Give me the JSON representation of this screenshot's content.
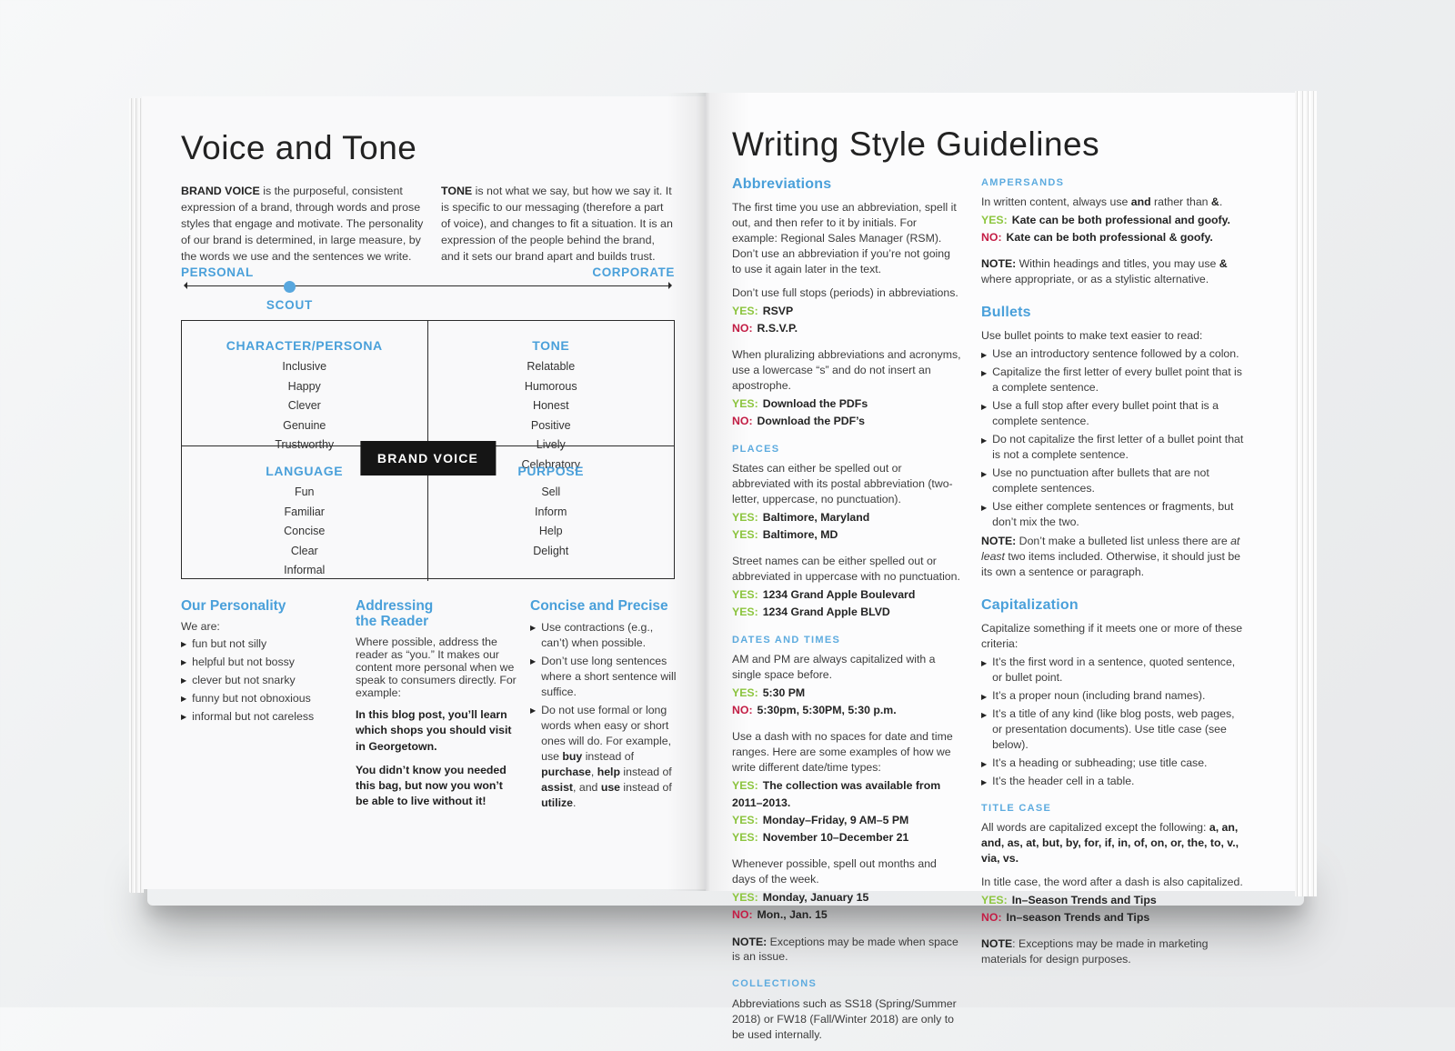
{
  "colors": {
    "accent_blue": "#4aa0da",
    "subhead_blue": "#5dabdf",
    "yes_green": "#8dc63f",
    "no_red": "#c41d45",
    "brand_box": "#151515"
  },
  "left_page": {
    "title": "Voice and Tone",
    "intro_col1": [
      {
        "t": "BRAND VOICE ",
        "b": true
      },
      {
        "t": "is the purposeful, consistent expression of a brand, through words and prose styles that engage and motivate. The personality of our brand is determined, in large measure, by the words we use and the sentences we write."
      }
    ],
    "intro_col2": [
      {
        "t": "TONE ",
        "b": true
      },
      {
        "t": "is not what we say, but how we say it. It is specific to our messaging (therefore a part of voice), and changes to fit a situation. It is an expression of the people behind the brand, and it sets our brand apart and builds trust."
      }
    ],
    "spectrum": {
      "left_label": "PERSONAL",
      "right_label": "CORPORATE",
      "marker_label": "SCOUT",
      "marker_position_pct": 22
    },
    "matrix": {
      "center_label": "BRAND VOICE",
      "quadrants": [
        {
          "title": "CHARACTER/PERSONA",
          "items": [
            "Inclusive",
            "Happy",
            "Clever",
            "Genuine",
            "Trustworthy"
          ]
        },
        {
          "title": "TONE",
          "items": [
            "Relatable",
            "Humorous",
            "Honest",
            "Positive",
            "Lively",
            "Celebratory"
          ]
        },
        {
          "title": "LANGUAGE",
          "items": [
            "Fun",
            "Familiar",
            "Concise",
            "Clear",
            "Informal"
          ]
        },
        {
          "title": "PURPOSE",
          "items": [
            "Sell",
            "Inform",
            "Help",
            "Delight"
          ]
        }
      ]
    },
    "personality": {
      "title": "Our Personality",
      "intro": "We are:",
      "bullets": [
        "fun but not silly",
        "helpful but not bossy",
        "clever but not snarky",
        "funny but not obnoxious",
        "informal but not careless"
      ]
    },
    "addressing": {
      "title": "Addressing the Reader",
      "body": "Where possible, address the reader as “you.” It makes our content more personal when we speak to consumers directly. For example:",
      "examples": [
        "In this blog post, you’ll learn which shops you should visit in Georgetown.",
        "You didn’t know you needed this bag, but now you won’t be able to live without it!"
      ]
    },
    "concise": {
      "title": "Concise and Precise",
      "bullets": [
        [
          {
            "t": "Use contractions (e.g., can’t) when possible."
          }
        ],
        [
          {
            "t": "Don’t use long sentences where a short sentence will suffice."
          }
        ],
        [
          {
            "t": "Do not use formal or long words when easy or short ones will do. For example, use "
          },
          {
            "t": "buy",
            "b": true
          },
          {
            "t": " instead of "
          },
          {
            "t": "purchase",
            "b": true
          },
          {
            "t": ", "
          },
          {
            "t": "help",
            "b": true
          },
          {
            "t": " instead of "
          },
          {
            "t": "assist",
            "b": true
          },
          {
            "t": ", and "
          },
          {
            "t": "use",
            "b": true
          },
          {
            "t": " instead of "
          },
          {
            "t": "utilize",
            "b": true
          },
          {
            "t": "."
          }
        ]
      ]
    }
  },
  "right_page": {
    "title": "Writing Style Guidelines",
    "abbreviations": {
      "title": "Abbreviations",
      "p1": "The first time you use an abbreviation, spell it out, and then refer to it by initials. For example: Regional Sales Manager (RSM). Don’t use an abbreviation if you’re not going to use it again later in the text.",
      "p2": "Don’t use full stops (periods) in abbreviations.",
      "yn1": [
        {
          "label": "YES:",
          "kind": "yes",
          "text": "RSVP"
        },
        {
          "label": "NO:",
          "kind": "no",
          "text": "R.S.V.P."
        }
      ],
      "p3": "When pluralizing abbreviations and acronyms, use a lowercase “s” and do not insert an apostrophe.",
      "yn2": [
        {
          "label": "YES:",
          "kind": "yes",
          "text": "Download the PDFs"
        },
        {
          "label": "NO:",
          "kind": "no",
          "text": "Download the PDF’s"
        }
      ]
    },
    "places": {
      "title": "PLACES",
      "p1": "States can either be spelled out or abbreviated with its postal abbreviation (two-letter, uppercase, no punctuation).",
      "yn1": [
        {
          "label": "YES:",
          "kind": "yes",
          "text": "Baltimore, Maryland"
        },
        {
          "label": "YES:",
          "kind": "yes",
          "text": "Baltimore, MD"
        }
      ],
      "p2": "Street names can be either spelled out or abbreviated in uppercase with no punctuation.",
      "yn2": [
        {
          "label": "YES:",
          "kind": "yes",
          "text": "1234 Grand Apple Boulevard"
        },
        {
          "label": "YES:",
          "kind": "yes",
          "text": "1234 Grand Apple BLVD"
        }
      ]
    },
    "dates": {
      "title": "DATES AND TIMES",
      "p1": "AM and PM are always capitalized with a single space before.",
      "yn1": [
        {
          "label": "YES:",
          "kind": "yes",
          "text": "5:30 PM"
        },
        {
          "label": "NO:",
          "kind": "no",
          "text": "5:30pm, 5:30PM, 5:30 p.m."
        }
      ],
      "p2": "Use a dash with no spaces for date and time ranges. Here are some examples of how we write different date/time types:",
      "yn2": [
        {
          "label": "YES:",
          "kind": "yes",
          "text": "The collection was available from 2011–2013."
        },
        {
          "label": "YES:",
          "kind": "yes",
          "text": "Monday–Friday, 9 AM–5 PM"
        },
        {
          "label": "YES:",
          "kind": "yes",
          "text": "November 10–December 21"
        }
      ],
      "p3": "Whenever possible, spell out months and days of the week.",
      "yn3": [
        {
          "label": "YES:",
          "kind": "yes",
          "text": "Monday, January 15"
        },
        {
          "label": "NO:",
          "kind": "no",
          "text": "Mon., Jan. 15"
        }
      ],
      "note": [
        {
          "t": "NOTE:",
          "b": true
        },
        {
          "t": " Exceptions may be made when space is an issue."
        }
      ]
    },
    "collections": {
      "title": "COLLECTIONS",
      "p1": "Abbreviations such as SS18 (Spring/Summer 2018) or FW18 (Fall/Winter 2018) are only to be used internally."
    },
    "ampersands": {
      "title": "AMPERSANDS",
      "p1": [
        {
          "t": "In written content, always use "
        },
        {
          "t": "and",
          "b": true
        },
        {
          "t": " rather than "
        },
        {
          "t": "&",
          "b": true
        },
        {
          "t": "."
        }
      ],
      "yn1": [
        {
          "label": "YES:",
          "kind": "yes",
          "text": "Kate can be both professional and goofy."
        },
        {
          "label": "NO:",
          "kind": "no",
          "text": "Kate can be both professional & goofy."
        }
      ],
      "note": [
        {
          "t": "NOTE:",
          "b": true
        },
        {
          "t": " Within headings and titles, you may use "
        },
        {
          "t": "&",
          "b": true
        },
        {
          "t": " where appropriate, or as a stylistic alternative."
        }
      ]
    },
    "bullets_sec": {
      "title": "Bullets",
      "p1": "Use bullet points to make text easier to read:",
      "bullets": [
        [
          {
            "t": "Use an introductory sentence followed by a colon."
          }
        ],
        [
          {
            "t": "Capitalize the first letter of every bullet point that is a complete sentence."
          }
        ],
        [
          {
            "t": "Use a full stop after every bullet point that is a complete sentence."
          }
        ],
        [
          {
            "t": "Do not capitalize the first letter of a bullet point that is not a complete sentence."
          }
        ],
        [
          {
            "t": "Use no punctuation after bullets that are not complete sentences."
          }
        ],
        [
          {
            "t": "Use either complete sentences or fragments, but don’t mix the two."
          }
        ]
      ],
      "note": [
        {
          "t": "NOTE:",
          "b": true
        },
        {
          "t": " Don’t make a bulleted list unless there are "
        },
        {
          "t": "at least",
          "i": true
        },
        {
          "t": " two items included. Otherwise, it should just be its own a sentence or paragraph."
        }
      ]
    },
    "capitalization": {
      "title": "Capitalization",
      "p1": "Capitalize something if it meets one or more of these criteria:",
      "bullets": [
        [
          {
            "t": "It’s the first word in a sentence, quoted sentence, or bullet point."
          }
        ],
        [
          {
            "t": "It’s a proper noun (including brand names)."
          }
        ],
        [
          {
            "t": "It’s a title of any kind (like blog posts, web pages, or presentation documents). Use title case (see below)."
          }
        ],
        [
          {
            "t": "It’s a heading or subheading; use title case."
          }
        ],
        [
          {
            "t": "It’s the header cell in a table."
          }
        ]
      ]
    },
    "title_case": {
      "title": "TITLE CASE",
      "p1": [
        {
          "t": "All words are capitalized except the following: "
        },
        {
          "t": "a, an, and, as, at, but, by, for, if, in, of, on, or, the, to, v., via, vs.",
          "b": true
        }
      ],
      "p2": "In title case, the word after a dash is also capitalized.",
      "yn1": [
        {
          "label": "YES:",
          "kind": "yes",
          "text": "In–Season Trends and Tips"
        },
        {
          "label": "NO:",
          "kind": "no",
          "text": "In–season Trends and Tips"
        }
      ],
      "note": [
        {
          "t": "NOTE",
          "b": true
        },
        {
          "t": ": Exceptions may be made in marketing materials for design purposes."
        }
      ]
    }
  }
}
